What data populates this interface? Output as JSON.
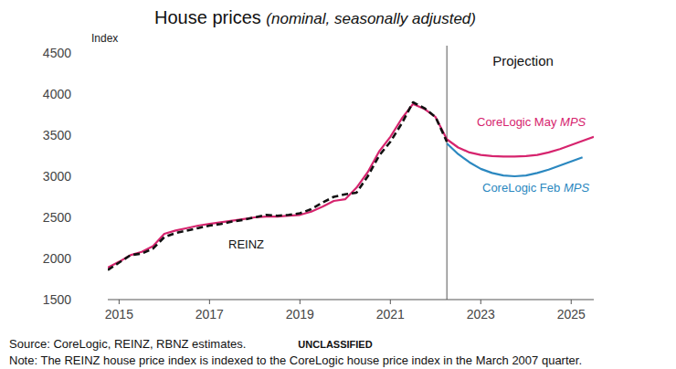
{
  "chart_data": {
    "type": "line",
    "title": "House prices",
    "subtitle": "(nominal, seasonally adjusted)",
    "y_label": "Index",
    "x": [
      2014.75,
      2015.0,
      2015.25,
      2015.5,
      2015.75,
      2016.0,
      2016.25,
      2016.5,
      2016.75,
      2017.0,
      2017.25,
      2017.5,
      2017.75,
      2018.0,
      2018.25,
      2018.5,
      2018.75,
      2019.0,
      2019.25,
      2019.5,
      2019.75,
      2020.0,
      2020.25,
      2020.5,
      2020.75,
      2021.0,
      2021.25,
      2021.5,
      2021.75,
      2022.0,
      2022.25,
      2022.5,
      2022.75,
      2023.0,
      2023.25,
      2023.5,
      2023.75,
      2024.0,
      2024.25,
      2024.5,
      2024.75,
      2025.0,
      2025.25,
      2025.5
    ],
    "series": [
      {
        "name": "CoreLogic May MPS",
        "color": "#d6246e",
        "line_style": "solid",
        "values": [
          1890,
          1960,
          2040,
          2080,
          2150,
          2300,
          2340,
          2370,
          2400,
          2420,
          2440,
          2460,
          2480,
          2500,
          2510,
          2510,
          2520,
          2530,
          2570,
          2630,
          2700,
          2720,
          2860,
          3050,
          3300,
          3480,
          3700,
          3880,
          3820,
          3720,
          3450,
          3350,
          3290,
          3260,
          3245,
          3240,
          3240,
          3245,
          3260,
          3290,
          3330,
          3380,
          3430,
          3480
        ]
      },
      {
        "name": "CoreLogic Feb MPS",
        "color": "#2b88c0",
        "line_style": "solid",
        "values": [
          null,
          null,
          null,
          null,
          null,
          null,
          null,
          null,
          null,
          null,
          null,
          null,
          null,
          null,
          null,
          null,
          null,
          null,
          null,
          null,
          null,
          null,
          null,
          null,
          null,
          null,
          null,
          null,
          null,
          null,
          3400,
          3270,
          3170,
          3090,
          3040,
          3010,
          3000,
          3010,
          3040,
          3080,
          3130,
          3180,
          3230,
          null
        ]
      },
      {
        "name": "REINZ",
        "color": "#111111",
        "line_style": "dashed",
        "values": [
          1860,
          1950,
          2040,
          2060,
          2120,
          2260,
          2310,
          2340,
          2370,
          2400,
          2420,
          2450,
          2470,
          2500,
          2530,
          2520,
          2530,
          2550,
          2600,
          2680,
          2750,
          2780,
          2800,
          3000,
          3250,
          3420,
          3640,
          3900,
          3830,
          3720,
          3420,
          null,
          null,
          null,
          null,
          null,
          null,
          null,
          null,
          null,
          null,
          null,
          null,
          null
        ]
      }
    ],
    "xlim": [
      2014.75,
      2025.5
    ],
    "xticks": [
      2015,
      2017,
      2019,
      2021,
      2023,
      2025
    ],
    "ylim": [
      1500,
      4500
    ],
    "yticks": [
      1500,
      2000,
      2500,
      3000,
      3500,
      4000,
      4500
    ],
    "grid": false,
    "annotations": [
      {
        "text": "Projection",
        "x": 2022.25
      }
    ],
    "source": "Source: CoreLogic, REINZ, RBNZ estimates.",
    "classification": "UNCLASSIFIED",
    "note": "Note: The REINZ house price index is indexed to the CoreLogic house price index in the March 2007 quarter."
  }
}
